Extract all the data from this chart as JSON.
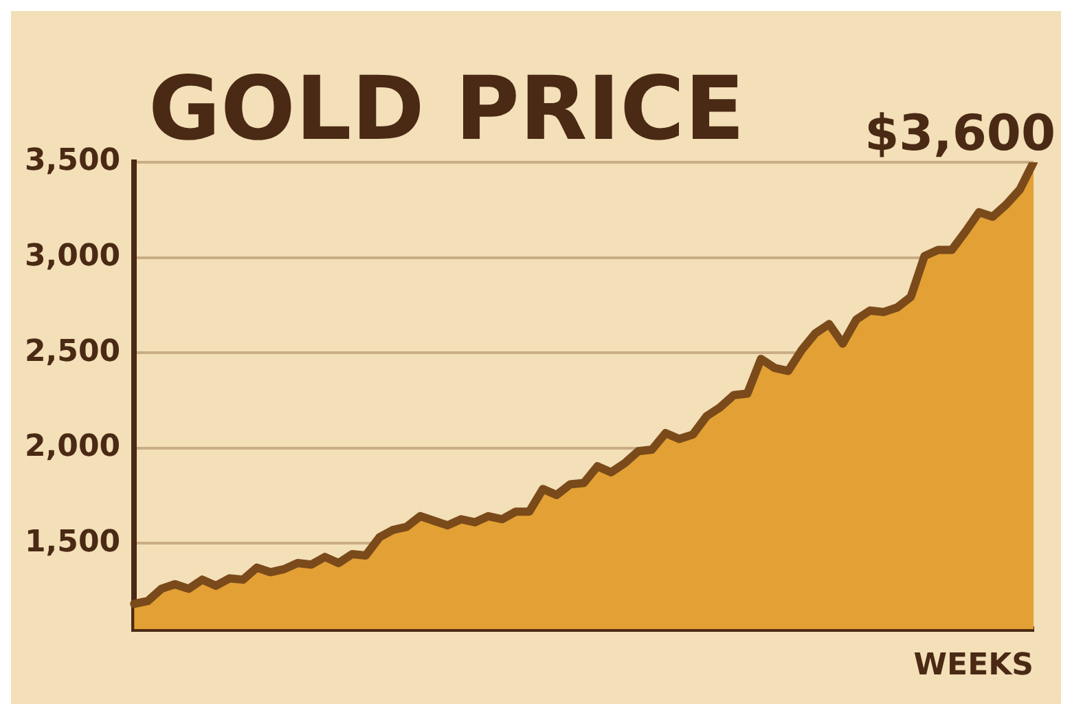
{
  "chart_data": {
    "type": "area",
    "title": "GOLD PRICE",
    "xlabel": "WEEKS",
    "annotations": [
      "$3,600"
    ],
    "categories": [
      null,
      null,
      null,
      null,
      null,
      null,
      null,
      null,
      null,
      null,
      null,
      null,
      null,
      null,
      null,
      null,
      null,
      null,
      null,
      null,
      null,
      null,
      null,
      null,
      null,
      null,
      null,
      null,
      null,
      null,
      null,
      null,
      null,
      null,
      null,
      null,
      null,
      null,
      null,
      null,
      null,
      null,
      null,
      null,
      null,
      null,
      null,
      null,
      null,
      null,
      null,
      null,
      null,
      null,
      null,
      null,
      null,
      null,
      null,
      null,
      null,
      null,
      null,
      null,
      null,
      null,
      null
    ],
    "series": [
      {
        "color": "#e3a034",
        "values": [
          1183,
          1198,
          1262,
          1286,
          1262,
          1310,
          1278,
          1317,
          1310,
          1373,
          1349,
          1365,
          1397,
          1389,
          1429,
          1397,
          1444,
          1437,
          1532,
          1571,
          1587,
          1643,
          1619,
          1595,
          1627,
          1611,
          1643,
          1627,
          1667,
          1667,
          1786,
          1754,
          1810,
          1817,
          1905,
          1873,
          1921,
          1984,
          1992,
          2079,
          2048,
          2071,
          2167,
          2214,
          2278,
          2286,
          2468,
          2421,
          2405,
          2516,
          2603,
          2651,
          2548,
          2675,
          2722,
          2714,
          2738,
          2794,
          3008,
          3040,
          3040,
          3135,
          3238,
          3214,
          3278,
          3357,
          3500
        ]
      }
    ],
    "ylim": [
      1050,
      3500
    ],
    "yticks": [
      {
        "value": 1500,
        "label": "1,500"
      },
      {
        "value": 2000,
        "label": "2,000"
      },
      {
        "value": 2500,
        "label": "2,500"
      },
      {
        "value": 3000,
        "label": "3,000"
      },
      {
        "value": 3500,
        "label": "3,500"
      }
    ],
    "grid": "y",
    "legend": false
  }
}
